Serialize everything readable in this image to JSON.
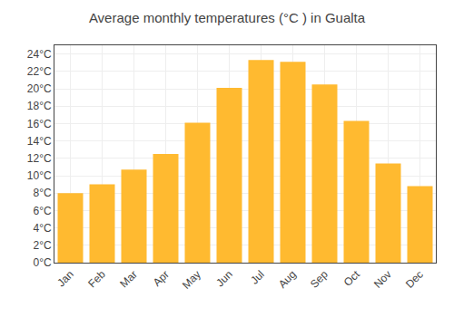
{
  "chart_data": {
    "type": "bar",
    "title": "Average monthly temperatures (°C ) in Gualta",
    "categories": [
      "Jan",
      "Feb",
      "Mar",
      "Apr",
      "May",
      "Jun",
      "Jul",
      "Aug",
      "Sep",
      "Oct",
      "Nov",
      "Dec"
    ],
    "values": [
      8.0,
      9.0,
      10.7,
      12.5,
      16.1,
      20.1,
      23.3,
      23.1,
      20.5,
      16.3,
      11.4,
      8.8
    ],
    "color": "#FFBA30",
    "ylim": [
      0,
      25
    ],
    "yticks": [
      {
        "value": 0,
        "label": "0°C"
      },
      {
        "value": 2,
        "label": "2°C"
      },
      {
        "value": 4,
        "label": "4°C"
      },
      {
        "value": 6,
        "label": "6°C"
      },
      {
        "value": 8,
        "label": "8°C"
      },
      {
        "value": 10,
        "label": "10°C"
      },
      {
        "value": 12,
        "label": "12°C"
      },
      {
        "value": 14,
        "label": "14°C"
      },
      {
        "value": 16,
        "label": "16°C"
      },
      {
        "value": 18,
        "label": "18°C"
      },
      {
        "value": 20,
        "label": "20°C"
      },
      {
        "value": 22,
        "label": "22°C"
      },
      {
        "value": 24,
        "label": "24°C"
      }
    ],
    "grid": true
  }
}
